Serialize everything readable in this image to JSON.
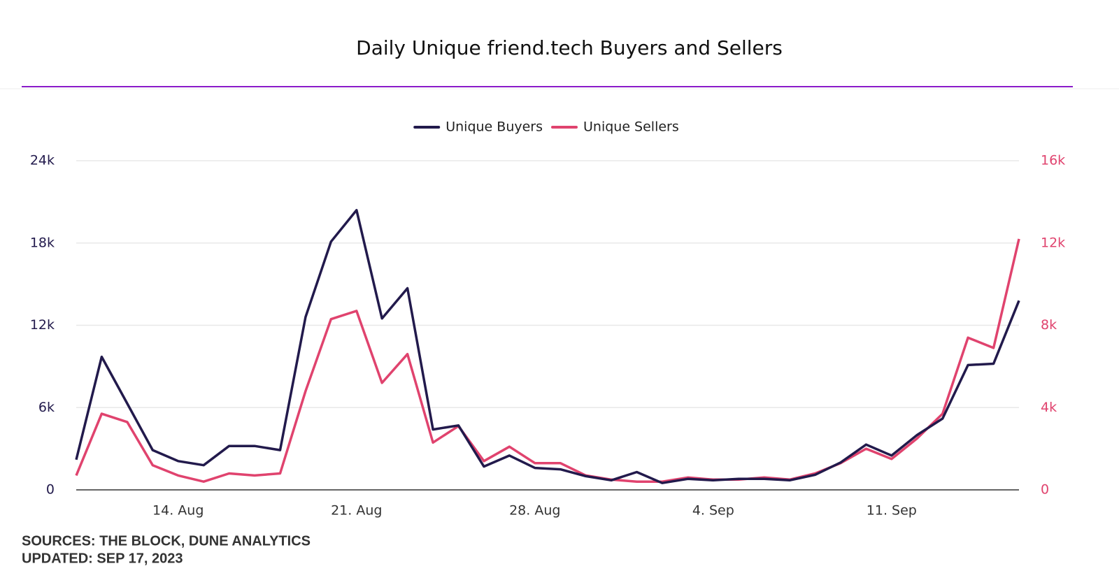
{
  "chart_data": {
    "type": "line",
    "title": "Daily Unique friend.tech Buyers and Sellers",
    "source": "SOURCES: THE BLOCK, DUNE ANALYTICS",
    "updated": "UPDATED: SEP 17, 2023",
    "categories": [
      null,
      null,
      null,
      null,
      "14. Aug",
      null,
      null,
      null,
      null,
      null,
      null,
      "21. Aug",
      null,
      null,
      null,
      null,
      null,
      null,
      "28. Aug",
      null,
      null,
      null,
      null,
      null,
      null,
      "4. Sep",
      null,
      null,
      null,
      null,
      null,
      null,
      "11. Sep",
      null,
      null,
      null,
      null,
      null
    ],
    "series": [
      {
        "name": "Unique Buyers",
        "color": "#221a4c",
        "axis": "y",
        "values": [
          2200,
          9700,
          6300,
          2900,
          2100,
          1800,
          3200,
          3200,
          2900,
          12600,
          18100,
          20400,
          12500,
          14700,
          4400,
          4700,
          1700,
          2500,
          1600,
          1500,
          1000,
          700,
          1300,
          500,
          800,
          700,
          800,
          800,
          700,
          1100,
          2000,
          3300,
          2500,
          4000,
          5200,
          9100,
          9200,
          13800
        ]
      },
      {
        "name": "Unique Sellers",
        "color": "#e0436e",
        "axis": "y2",
        "values": [
          700,
          3700,
          3300,
          1200,
          700,
          400,
          800,
          700,
          800,
          4800,
          8300,
          8700,
          5200,
          6600,
          2300,
          3100,
          1400,
          2100,
          1300,
          1300,
          700,
          500,
          400,
          400,
          600,
          500,
          500,
          600,
          500,
          800,
          1300,
          2000,
          1500,
          2500,
          3700,
          7400,
          6900,
          12200
        ]
      }
    ],
    "ylim": [
      0,
      24000
    ],
    "yticks": [
      0,
      {
        "value": 6000,
        "label": "6k"
      },
      {
        "value": 12000,
        "label": "12k"
      },
      {
        "value": 18000,
        "label": "18k"
      },
      {
        "value": 24000,
        "label": "24k"
      }
    ],
    "y2lim": [
      0,
      16000
    ],
    "y2ticks": [
      0,
      {
        "value": 4000,
        "label": "4k"
      },
      {
        "value": 8000,
        "label": "8k"
      },
      {
        "value": 12000,
        "label": "12k"
      },
      {
        "value": 16000,
        "label": "16k"
      }
    ],
    "grid": true,
    "legend": "top"
  }
}
